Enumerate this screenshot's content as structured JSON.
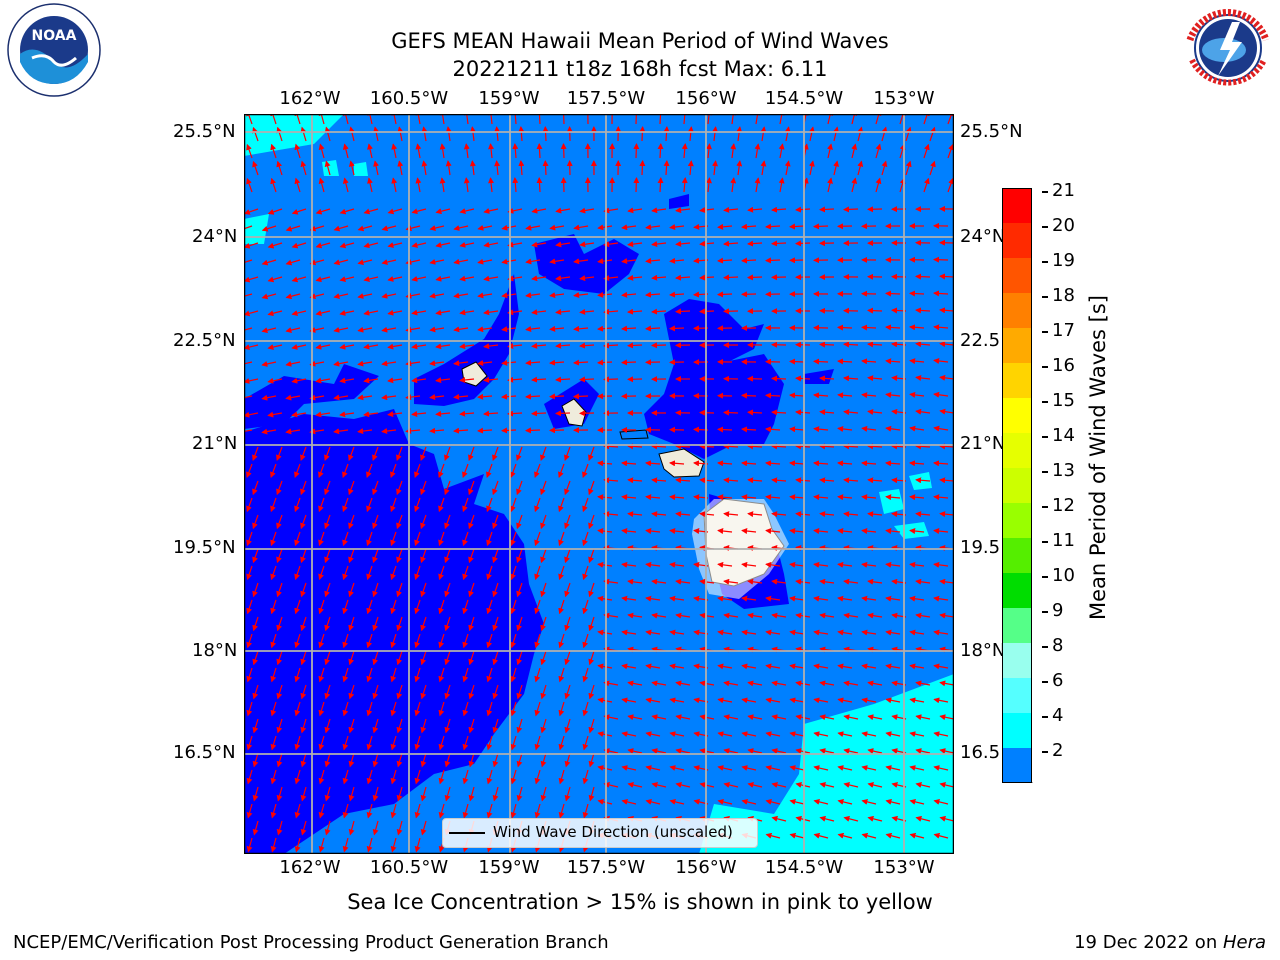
{
  "title": "GEFS MEAN Hawaii Mean Period of Wind Waves",
  "subtitle": "20221211 t18z 168h fcst   Max: 6.11",
  "logos": {
    "left": "NOAA",
    "left_ring_text": "NATIONAL OCEANIC AND ATMOSPHERIC ADMINISTRATION • U.S. DEPARTMENT OF COMMERCE",
    "right_ring_text": "NATIONAL WEATHER SERVICE"
  },
  "map": {
    "lon_labels": [
      "162°W",
      "160.5°W",
      "159°W",
      "157.5°W",
      "156°W",
      "154.5°W",
      "153°W"
    ],
    "lat_labels_left": [
      "25.5°N",
      "24°N",
      "22.5°N",
      "21°N",
      "19.5°N",
      "18°N",
      "16.5°N"
    ],
    "lat_labels_right": [
      "25.5°N",
      "24°N",
      "22.5",
      "21°N",
      "19.5",
      "18°N",
      "16.5"
    ],
    "legend_label": "Wind Wave Direction (unscaled)",
    "colors": {
      "ocean_2_4": "#0080ff",
      "ocean_lt2": "#0000ff",
      "ocean_4_6": "#00ffff",
      "land": "#efecdc",
      "arrows": "#ff0000",
      "grid": "#b0b0b0"
    }
  },
  "colorbar": {
    "title": "Mean Period of Wind Waves [s]",
    "ticks": [
      "21",
      "20",
      "19",
      "18",
      "17",
      "16",
      "15",
      "14",
      "13",
      "12",
      "11",
      "10",
      "9",
      "8",
      "6",
      "4",
      "2"
    ],
    "colors": [
      "#ff0000",
      "#ff2a00",
      "#ff5500",
      "#ff8000",
      "#ffaa00",
      "#ffd400",
      "#ffff00",
      "#e6ff00",
      "#ccff00",
      "#99ff00",
      "#55ee00",
      "#00dd00",
      "#55ff88",
      "#99ffee",
      "#55ffff",
      "#00ffff",
      "#0080ff"
    ],
    "extend_color": "#0000ff"
  },
  "caption": "Sea Ice Concentration > 15% is shown in pink to yellow",
  "footer_left": "NCEP/EMC/Verification Post Processing Product Generation Branch",
  "footer_right_date": "19 Dec 2022 on ",
  "footer_right_host": "Hera"
}
